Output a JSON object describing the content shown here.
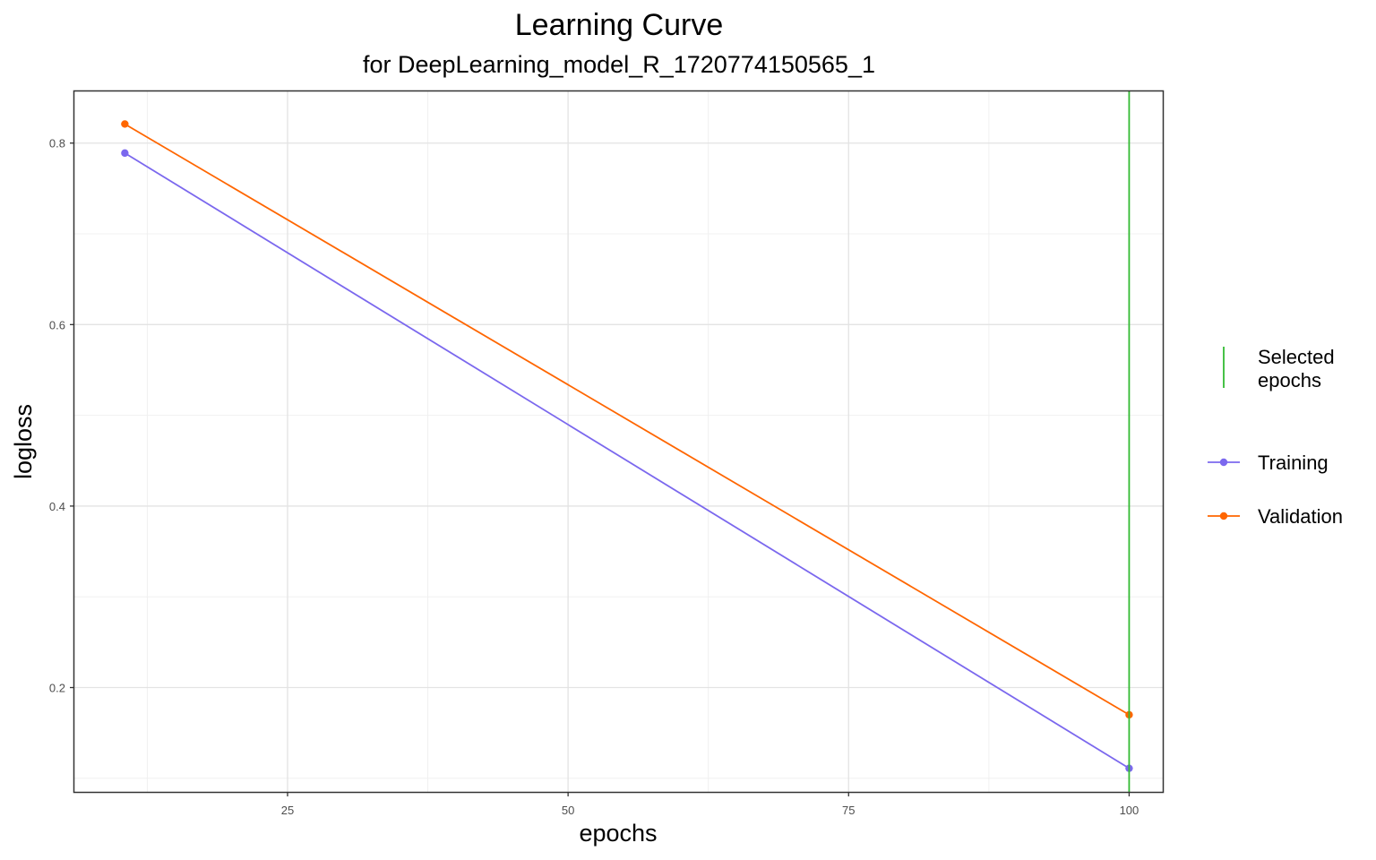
{
  "chart_data": {
    "type": "line",
    "title": "Learning Curve",
    "subtitle": "for DeepLearning_model_R_1720774150565_1",
    "xlabel": "epochs",
    "ylabel": "logloss",
    "xlim": [
      6,
      103
    ],
    "ylim": [
      0.085,
      0.857
    ],
    "x_ticks": [
      25,
      50,
      75,
      100
    ],
    "y_ticks": [
      0.2,
      0.4,
      0.6,
      0.8
    ],
    "x_tick_labels": [
      "25",
      "50",
      "75",
      "100"
    ],
    "y_tick_labels": [
      "0.2",
      "0.4",
      "0.6",
      "0.8"
    ],
    "grid": true,
    "legend_position": "right",
    "series": [
      {
        "name": "Training",
        "color": "#7b68ee",
        "x": [
          10.5,
          100
        ],
        "y": [
          0.789,
          0.111
        ]
      },
      {
        "name": "Validation",
        "color": "#ff6600",
        "x": [
          10.5,
          100
        ],
        "y": [
          0.821,
          0.17
        ]
      }
    ],
    "selected": {
      "name": "Selected epochs",
      "label_lines": [
        "Selected",
        "epochs"
      ],
      "x": 100,
      "color": "#33bb33"
    }
  }
}
